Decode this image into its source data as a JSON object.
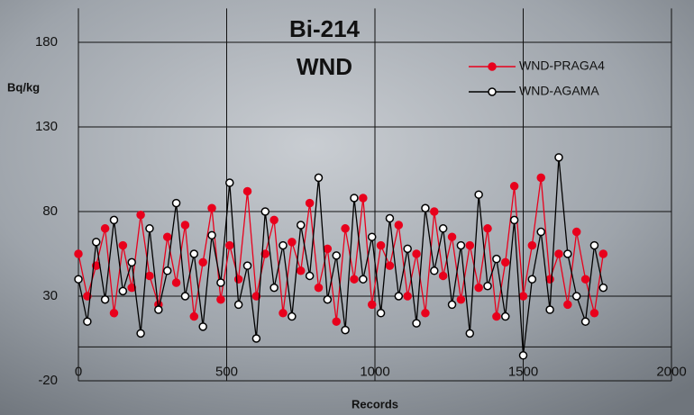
{
  "chart_data": {
    "type": "line",
    "title": "Bi-214",
    "subtitle": "WND",
    "x_label": "Records",
    "y_label": "Bq/kg",
    "x": [
      0,
      30,
      60,
      90,
      120,
      150,
      180,
      210,
      240,
      270,
      300,
      330,
      360,
      390,
      420,
      450,
      480,
      510,
      540,
      570,
      600,
      630,
      660,
      690,
      720,
      750,
      780,
      810,
      840,
      870,
      900,
      930,
      960,
      990,
      1020,
      1050,
      1080,
      1110,
      1140,
      1170,
      1200,
      1230,
      1260,
      1290,
      1320,
      1350,
      1380,
      1410,
      1440,
      1470,
      1500,
      1530,
      1560,
      1590,
      1620,
      1650,
      1680,
      1710,
      1740,
      1770
    ],
    "series": [
      {
        "name": "WND-PRAGA4",
        "color": "#e8001c",
        "marker_fill": "#e8001c",
        "values": [
          55,
          30,
          48,
          70,
          20,
          60,
          35,
          78,
          42,
          25,
          65,
          38,
          72,
          18,
          50,
          82,
          28,
          60,
          40,
          92,
          30,
          55,
          75,
          20,
          62,
          45,
          85,
          35,
          58,
          15,
          70,
          40,
          88,
          25,
          60,
          48,
          72,
          30,
          55,
          20,
          80,
          42,
          65,
          28,
          60,
          35,
          70,
          18,
          50,
          95,
          30,
          60,
          100,
          40,
          55,
          25,
          68,
          40,
          20,
          55
        ]
      },
      {
        "name": "WND-AGAMA",
        "color": "#000000",
        "marker_fill": "#ffffff",
        "values": [
          40,
          15,
          62,
          28,
          75,
          33,
          50,
          8,
          70,
          22,
          45,
          85,
          30,
          55,
          12,
          66,
          38,
          97,
          25,
          48,
          5,
          80,
          35,
          60,
          18,
          72,
          42,
          100,
          28,
          54,
          10,
          88,
          40,
          65,
          20,
          76,
          30,
          58,
          14,
          82,
          45,
          70,
          25,
          60,
          8,
          90,
          36,
          52,
          18,
          75,
          -5,
          40,
          68,
          22,
          112,
          55,
          30,
          15,
          60,
          35
        ]
      }
    ],
    "xlim": [
      0,
      2000
    ],
    "xticks": [
      0,
      500,
      1000,
      1500,
      2000
    ],
    "ylim": [
      -20,
      200
    ],
    "yticks": [
      -20,
      30,
      80,
      130,
      180
    ],
    "grid": true,
    "legend": "upper right"
  }
}
